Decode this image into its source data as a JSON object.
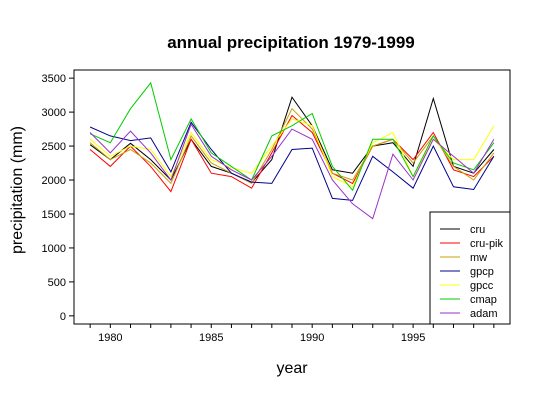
{
  "chart_data": {
    "type": "line",
    "title": "annual precipitation 1979-1999",
    "xlabel": "year",
    "ylabel": "precipitation (mm)",
    "xlim": [
      1978.2,
      1999.8
    ],
    "ylim": [
      -120,
      3620
    ],
    "xticks": [
      1980,
      1985,
      1990,
      1995
    ],
    "yticks": [
      0,
      500,
      1000,
      1500,
      2000,
      2500,
      3000,
      3500
    ],
    "grid": false,
    "legend_position": "bottom-right",
    "x": [
      1979,
      1980,
      1981,
      1982,
      1983,
      1984,
      1985,
      1986,
      1987,
      1988,
      1989,
      1990,
      1991,
      1992,
      1993,
      1994,
      1995,
      1996,
      1997,
      1998,
      1999
    ],
    "series": [
      {
        "name": "cru",
        "color": "#000000",
        "values": [
          2520,
          2300,
          2540,
          2300,
          2000,
          2600,
          2200,
          2100,
          1960,
          2300,
          3220,
          2800,
          2150,
          2100,
          2500,
          2550,
          2200,
          3200,
          2200,
          2100,
          2450
        ]
      },
      {
        "name": "cru-pik",
        "color": "#ff0000",
        "values": [
          2450,
          2200,
          2500,
          2200,
          1830,
          2600,
          2100,
          2050,
          1880,
          2400,
          2950,
          2700,
          2100,
          1950,
          2500,
          2600,
          2300,
          2700,
          2150,
          2050,
          2350
        ]
      },
      {
        "name": "mw",
        "color": "#c8a000",
        "values": [
          2550,
          2300,
          2450,
          2250,
          1950,
          2650,
          2250,
          2100,
          1950,
          2450,
          3050,
          2750,
          2100,
          2000,
          2500,
          2600,
          2250,
          2650,
          2200,
          2000,
          2400
        ]
      },
      {
        "name": "gpcp",
        "color": "#00008b",
        "values": [
          2780,
          2650,
          2580,
          2620,
          2120,
          2850,
          2450,
          2100,
          1970,
          1950,
          2450,
          2470,
          1730,
          1700,
          2350,
          2120,
          1880,
          2500,
          1900,
          1860,
          2350
        ]
      },
      {
        "name": "gpcc",
        "color": "#ffff00",
        "values": [
          2600,
          2350,
          2500,
          2450,
          2050,
          2700,
          2300,
          2180,
          2100,
          2500,
          2900,
          2800,
          2050,
          1900,
          2550,
          2700,
          2050,
          2600,
          2300,
          2300,
          2800
        ]
      },
      {
        "name": "cmap",
        "color": "#00cc00",
        "values": [
          2680,
          2550,
          3050,
          3430,
          2300,
          2900,
          2400,
          2200,
          2000,
          2650,
          2800,
          2980,
          2200,
          1850,
          2600,
          2600,
          2050,
          2650,
          2250,
          2150,
          2550
        ]
      },
      {
        "name": "adam",
        "color": "#9932cc",
        "values": [
          2700,
          2400,
          2720,
          2400,
          2000,
          2820,
          2350,
          2150,
          2000,
          2350,
          2750,
          2600,
          2000,
          1650,
          1430,
          2380,
          2000,
          2600,
          2350,
          2100,
          2600
        ]
      }
    ]
  }
}
